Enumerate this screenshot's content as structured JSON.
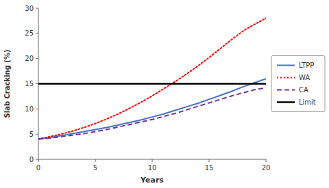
{
  "chart_data": {
    "type": "line",
    "xlabel": "Years",
    "ylabel": "Slab Cracking (%)",
    "x": [
      0,
      1,
      2,
      3,
      4,
      5,
      6,
      7,
      8,
      9,
      10,
      11,
      12,
      13,
      14,
      15,
      16,
      17,
      18,
      19,
      20
    ],
    "series": [
      {
        "name": "LTPP",
        "color": "#4472C4",
        "line_style": "solid",
        "values": [
          4.0,
          4.3,
          4.7,
          5.1,
          5.5,
          5.9,
          6.3,
          6.8,
          7.3,
          7.8,
          8.4,
          9.0,
          9.7,
          10.4,
          11.1,
          11.9,
          12.7,
          13.5,
          14.4,
          15.2,
          16.0
        ]
      },
      {
        "name": "WA",
        "color": "#FF0000",
        "line_style": "dotted",
        "values": [
          4.0,
          4.5,
          5.0,
          5.6,
          6.3,
          7.1,
          8.0,
          9.0,
          10.1,
          11.3,
          12.6,
          14.0,
          15.4,
          16.9,
          18.5,
          20.2,
          22.0,
          23.8,
          25.5,
          26.8,
          28.0
        ]
      },
      {
        "name": "CA",
        "color": "#7030A0",
        "line_style": "dashed",
        "values": [
          4.0,
          4.2,
          4.5,
          4.8,
          5.1,
          5.5,
          5.9,
          6.4,
          6.9,
          7.4,
          7.9,
          8.5,
          9.1,
          9.8,
          10.5,
          11.2,
          11.9,
          12.6,
          13.2,
          13.8,
          14.2
        ]
      },
      {
        "name": "Limit",
        "type": "hline",
        "color": "#000000",
        "line_style": "solid",
        "value": 15.0
      }
    ],
    "xlim": [
      0,
      20
    ],
    "ylim": [
      0,
      30
    ],
    "xticks": [
      0,
      5,
      10,
      15,
      20
    ],
    "yticks": [
      0,
      5,
      10,
      15,
      20,
      25,
      30
    ],
    "grid": false,
    "legend": "right"
  }
}
